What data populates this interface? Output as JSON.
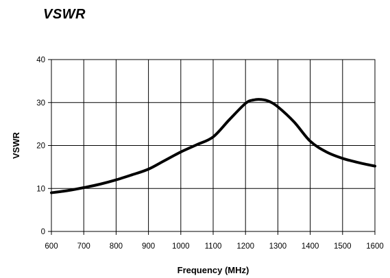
{
  "chart_data": {
    "type": "line",
    "title": "VSWR",
    "xlabel": "Frequency (MHz)",
    "ylabel": "VSWR",
    "xlim": [
      600,
      1600
    ],
    "ylim": [
      0,
      40
    ],
    "grid": true,
    "x_ticks": [
      600,
      700,
      800,
      900,
      1000,
      1100,
      1200,
      1300,
      1400,
      1500,
      1600
    ],
    "y_ticks": [
      0,
      10,
      20,
      30,
      40
    ],
    "series": [
      {
        "x": [
          600,
          650,
          700,
          750,
          800,
          850,
          900,
          950,
          1000,
          1050,
          1100,
          1150,
          1200,
          1225,
          1250,
          1275,
          1300,
          1350,
          1400,
          1450,
          1500,
          1550,
          1600
        ],
        "values": [
          9.0,
          9.5,
          10.2,
          11.0,
          12.0,
          13.2,
          14.5,
          16.5,
          18.5,
          20.2,
          22.0,
          26.0,
          29.8,
          30.6,
          30.7,
          30.2,
          29.0,
          25.5,
          21.0,
          18.5,
          17.0,
          16.0,
          15.2
        ],
        "color": "#000000"
      }
    ]
  }
}
